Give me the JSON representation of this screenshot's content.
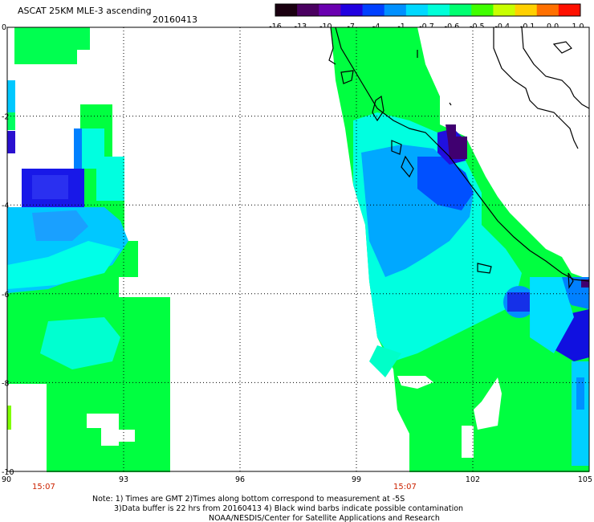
{
  "header": {
    "title": "ASCAT 25KM MLE-3 ascending",
    "date": "20160413"
  },
  "colorbar": {
    "labels": [
      "-16",
      "-13",
      "-10",
      "-7",
      "-4",
      "-1",
      "-0.7",
      "-0.6",
      "-0.5",
      "-0.4",
      "-0.1",
      "0.0",
      "1.0"
    ],
    "colors": [
      "#1a0010",
      "#4a0060",
      "#6a00b0",
      "#2000e0",
      "#0040ff",
      "#0090ff",
      "#00d8ff",
      "#00ffd8",
      "#00ff70",
      "#40ff00",
      "#c8ff00",
      "#ffd000",
      "#ff7000",
      "#ff1000"
    ]
  },
  "map": {
    "x_ticks": [
      "90",
      "93",
      "96",
      "99",
      "102",
      "105"
    ],
    "y_ticks": [
      "0",
      "-2",
      "-4",
      "-6",
      "-8",
      "-10"
    ],
    "time_labels": [
      "15:07",
      "15:07"
    ]
  },
  "footer": {
    "line1": "Note: 1) Times are GMT 2)Times along bottom correspond to measurement at -5S",
    "line2": "3)Data buffer is 22 hrs from 20160413 4) Black wind barbs indicate possible contamination",
    "line3": "NOAA/NESDIS/Center for Satellite Applications and Research"
  },
  "colors": {
    "green": "#00ff40",
    "cyan": "#00ffff",
    "blue": "#0060ff",
    "deep_blue": "#1010e0",
    "violet": "#400070",
    "time_label": "#cc2200"
  }
}
